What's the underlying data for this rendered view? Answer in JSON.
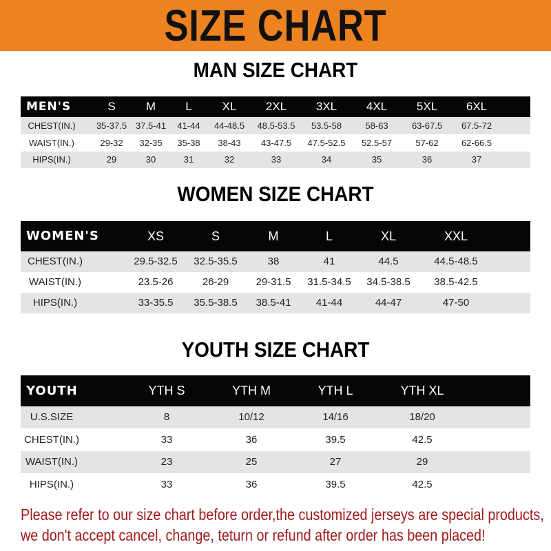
{
  "banner": {
    "title": "SIZE CHART",
    "color": "#ed8220"
  },
  "men": {
    "title": "MAN SIZE CHART",
    "header": [
      "MEN'S",
      "S",
      "M",
      "L",
      "XL",
      "2XL",
      "3XL",
      "4XL",
      "5XL",
      "6XL"
    ],
    "rows": [
      [
        "CHEST(IN.)",
        "35-37.5",
        "37.5-41",
        "41-44",
        "44-48.5",
        "48.5-53.5",
        "53.5-58",
        "58-63",
        "63-67.5",
        "67.5-72"
      ],
      [
        "WAIST(IN.)",
        "29-32",
        "32-35",
        "35-38",
        "38-43",
        "43-47.5",
        "47.5-52.5",
        "52.5-57",
        "57-62",
        "62-66.5"
      ],
      [
        "HIPS(IN.)",
        "29",
        "30",
        "31",
        "32",
        "33",
        "34",
        "35",
        "36",
        "37"
      ]
    ]
  },
  "women": {
    "title": "WOMEN SIZE CHART",
    "header": [
      "WOMEN'S",
      "XS",
      "S",
      "M",
      "L",
      "XL",
      "XXL"
    ],
    "rows": [
      [
        "CHEST(IN.)",
        "29.5-32.5",
        "32.5-35.5",
        "38",
        "41",
        "44.5",
        "44.5-48.5"
      ],
      [
        "WAIST(IN.)",
        "23.5-26",
        "26-29",
        "29-31.5",
        "31.5-34.5",
        "34.5-38.5",
        "38.5-42.5"
      ],
      [
        "HIPS(IN.)",
        "33-35.5",
        "35.5-38.5",
        "38.5-41",
        "41-44",
        "44-47",
        "47-50"
      ]
    ]
  },
  "youth": {
    "title": "YOUTH SIZE CHART",
    "header": [
      "YOUTH",
      "YTH S",
      "YTH M",
      "YTH L",
      "YTH XL"
    ],
    "rows": [
      [
        "U.S.SIZE",
        "8",
        "10/12",
        "14/16",
        "18/20"
      ],
      [
        "CHEST(IN.)",
        "33",
        "36",
        "39.5",
        "42.5"
      ],
      [
        "WAIST(IN.)",
        "23",
        "25",
        "27",
        "29"
      ],
      [
        "HIPS(IN.)",
        "33",
        "36",
        "39.5",
        "42.5"
      ]
    ]
  },
  "note": {
    "line1": "Please refer to our size chart before order,the customized jerseys are special products,",
    "line2": "we don't accept cancel, change, teturn or refund after order has been placed!",
    "color": "#a01b1b"
  }
}
